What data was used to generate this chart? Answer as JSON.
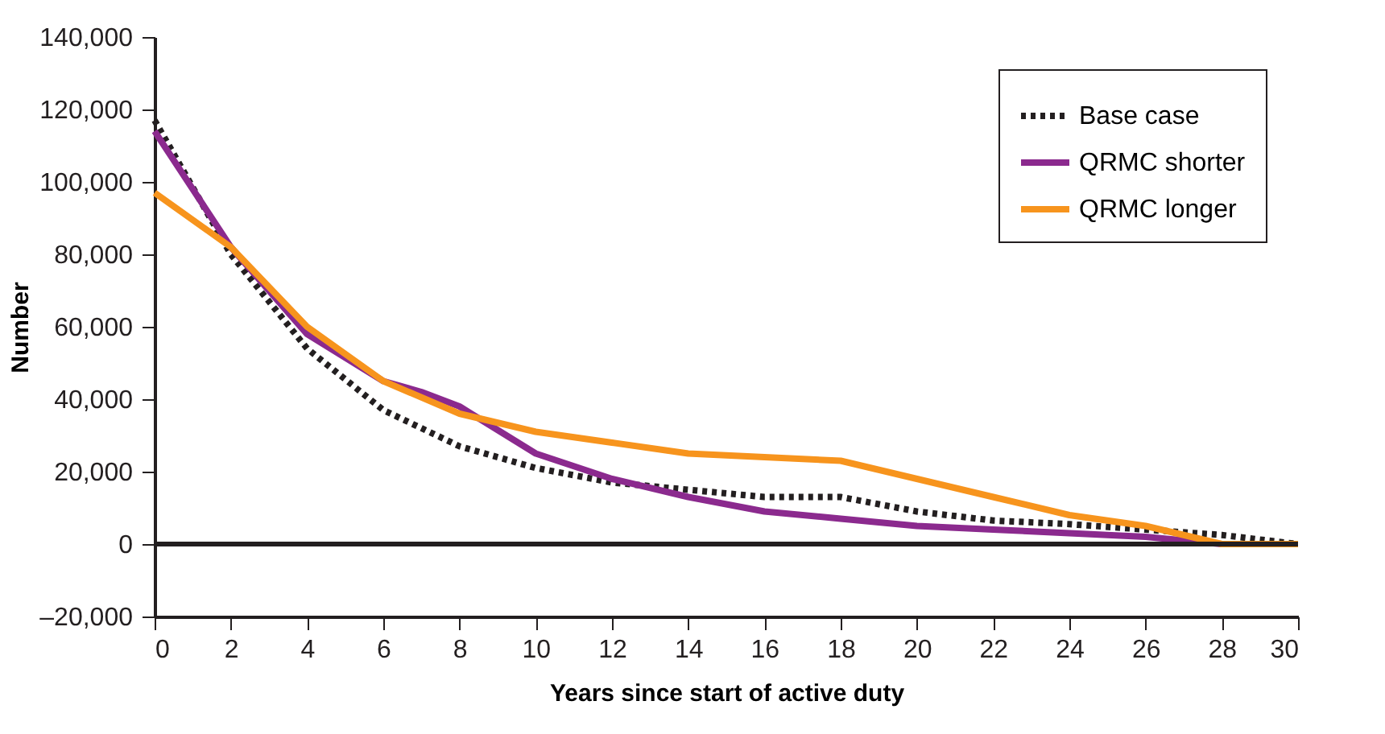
{
  "chart_data": {
    "type": "line",
    "xlabel": "Years since start of active duty",
    "ylabel": "Number",
    "xlim": [
      0,
      30
    ],
    "xticks": [
      0,
      2,
      4,
      6,
      8,
      10,
      12,
      14,
      16,
      18,
      20,
      22,
      24,
      26,
      28,
      30
    ],
    "ylim": [
      -20000,
      140000
    ],
    "yticks": [
      {
        "value": -20000,
        "label": "–20,000"
      },
      {
        "value": 0,
        "label": "0"
      },
      {
        "value": 20000,
        "label": "20,000"
      },
      {
        "value": 40000,
        "label": "40,000"
      },
      {
        "value": 60000,
        "label": "60,000"
      },
      {
        "value": 80000,
        "label": "80,000"
      },
      {
        "value": 100000,
        "label": "100,000"
      },
      {
        "value": 120000,
        "label": "120,000"
      },
      {
        "value": 140000,
        "label": "140,000"
      }
    ],
    "grid": false,
    "legend": "top right",
    "ref_lines": [
      {
        "axis": "y",
        "value": 0,
        "color": "#231f20"
      }
    ],
    "series": [
      {
        "name": "Base case",
        "color": "#231f20",
        "line_style": "dotted",
        "x": [
          0,
          2,
          4,
          6,
          8,
          10,
          12,
          14,
          16,
          18,
          20,
          22,
          24,
          26,
          28,
          30
        ],
        "values": [
          117000,
          80000,
          54000,
          37000,
          27000,
          21000,
          17000,
          15000,
          13000,
          13000,
          9000,
          6500,
          5500,
          4000,
          2500,
          0
        ]
      },
      {
        "name": "QRMC shorter",
        "color": "#8b2a8e",
        "line_style": "solid",
        "x": [
          0,
          2,
          4,
          6,
          7,
          8,
          10,
          12,
          14,
          16,
          18,
          20,
          22,
          24,
          26,
          28,
          30
        ],
        "values": [
          114000,
          82000,
          58000,
          45000,
          42000,
          38000,
          25000,
          18000,
          13000,
          9000,
          7000,
          5000,
          4000,
          3000,
          2000,
          0,
          0
        ]
      },
      {
        "name": "QRMC longer",
        "color": "#f7941d",
        "line_style": "solid",
        "x": [
          0,
          2,
          4,
          6,
          8,
          10,
          12,
          14,
          16,
          18,
          20,
          22,
          24,
          26,
          28,
          30
        ],
        "values": [
          97000,
          82000,
          60000,
          45000,
          36000,
          31000,
          28000,
          25000,
          24000,
          23000,
          18000,
          13000,
          8000,
          5000,
          0,
          0
        ]
      }
    ]
  }
}
